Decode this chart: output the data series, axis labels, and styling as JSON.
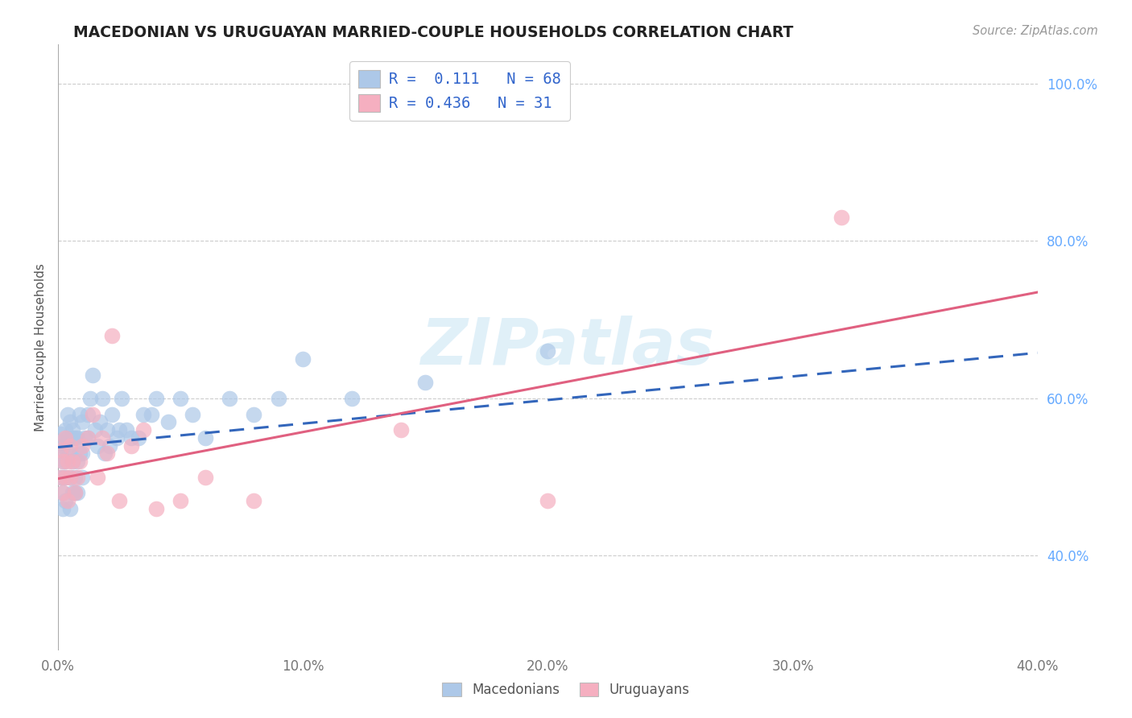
{
  "title": "MACEDONIAN VS URUGUAYAN MARRIED-COUPLE HOUSEHOLDS CORRELATION CHART",
  "source": "Source: ZipAtlas.com",
  "ylabel_label": "Married-couple Households",
  "xlabel_label_mac": "Macedonians",
  "xlabel_label_uru": "Uruguayans",
  "xlim": [
    0.0,
    0.4
  ],
  "ylim": [
    0.28,
    1.05
  ],
  "yticks": [
    1.0,
    0.8,
    0.6,
    0.4
  ],
  "xticks": [
    0.0,
    0.1,
    0.2,
    0.3,
    0.4
  ],
  "mac_R": 0.111,
  "mac_N": 68,
  "uru_R": 0.436,
  "uru_N": 31,
  "mac_color": "#adc8e8",
  "uru_color": "#f5afc0",
  "mac_line_color": "#3366bb",
  "uru_line_color": "#e06080",
  "watermark": "ZIPatlas",
  "background_color": "#ffffff",
  "grid_color": "#cccccc",
  "mac_x": [
    0.001,
    0.001,
    0.001,
    0.001,
    0.002,
    0.002,
    0.002,
    0.002,
    0.002,
    0.003,
    0.003,
    0.003,
    0.003,
    0.004,
    0.004,
    0.004,
    0.005,
    0.005,
    0.005,
    0.005,
    0.006,
    0.006,
    0.006,
    0.006,
    0.007,
    0.007,
    0.007,
    0.008,
    0.008,
    0.008,
    0.009,
    0.009,
    0.01,
    0.01,
    0.01,
    0.011,
    0.012,
    0.012,
    0.013,
    0.014,
    0.015,
    0.016,
    0.017,
    0.018,
    0.019,
    0.02,
    0.021,
    0.022,
    0.024,
    0.025,
    0.026,
    0.028,
    0.03,
    0.033,
    0.035,
    0.038,
    0.04,
    0.045,
    0.05,
    0.055,
    0.06,
    0.07,
    0.08,
    0.09,
    0.1,
    0.12,
    0.15,
    0.2
  ],
  "mac_y": [
    0.535,
    0.545,
    0.555,
    0.5,
    0.52,
    0.54,
    0.5,
    0.46,
    0.48,
    0.5,
    0.56,
    0.52,
    0.47,
    0.55,
    0.58,
    0.53,
    0.53,
    0.57,
    0.5,
    0.46,
    0.55,
    0.52,
    0.48,
    0.56,
    0.55,
    0.5,
    0.48,
    0.55,
    0.52,
    0.48,
    0.58,
    0.53,
    0.57,
    0.53,
    0.5,
    0.55,
    0.58,
    0.55,
    0.6,
    0.63,
    0.56,
    0.54,
    0.57,
    0.6,
    0.53,
    0.56,
    0.54,
    0.58,
    0.55,
    0.56,
    0.6,
    0.56,
    0.55,
    0.55,
    0.58,
    0.58,
    0.6,
    0.57,
    0.6,
    0.58,
    0.55,
    0.6,
    0.58,
    0.6,
    0.65,
    0.6,
    0.62,
    0.66
  ],
  "uru_x": [
    0.001,
    0.001,
    0.002,
    0.002,
    0.003,
    0.003,
    0.004,
    0.004,
    0.005,
    0.005,
    0.006,
    0.007,
    0.008,
    0.009,
    0.01,
    0.012,
    0.014,
    0.016,
    0.018,
    0.02,
    0.022,
    0.025,
    0.03,
    0.035,
    0.04,
    0.05,
    0.06,
    0.08,
    0.14,
    0.2,
    0.32
  ],
  "uru_y": [
    0.535,
    0.5,
    0.52,
    0.48,
    0.55,
    0.5,
    0.47,
    0.52,
    0.5,
    0.54,
    0.52,
    0.48,
    0.5,
    0.52,
    0.54,
    0.55,
    0.58,
    0.5,
    0.55,
    0.53,
    0.68,
    0.47,
    0.54,
    0.56,
    0.46,
    0.47,
    0.5,
    0.47,
    0.56,
    0.47,
    0.83
  ],
  "mac_line_x": [
    0.0,
    0.4
  ],
  "mac_line_y": [
    0.538,
    0.658
  ],
  "uru_line_x": [
    0.0,
    0.4
  ],
  "uru_line_y": [
    0.498,
    0.735
  ]
}
